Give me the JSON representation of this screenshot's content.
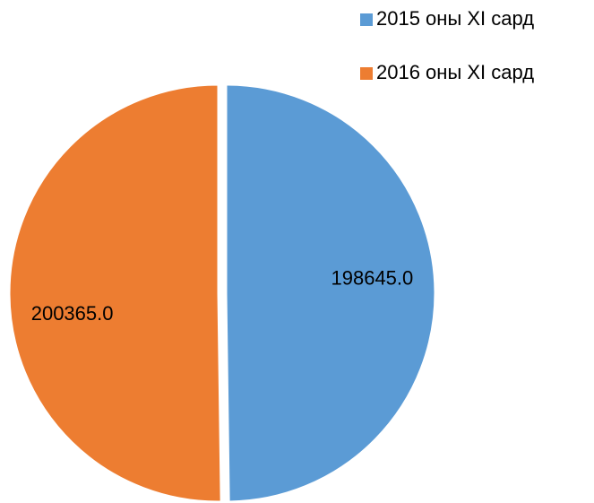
{
  "chart_data": {
    "type": "pie",
    "categories": [
      "2015 оны XI сард",
      "2016 оны XI сард"
    ],
    "values": [
      198645,
      200365
    ],
    "value_labels": [
      "198645.0",
      "200365.0"
    ],
    "colors": [
      "#5b9bd5",
      "#ed7d31"
    ],
    "legend": "top-right"
  }
}
